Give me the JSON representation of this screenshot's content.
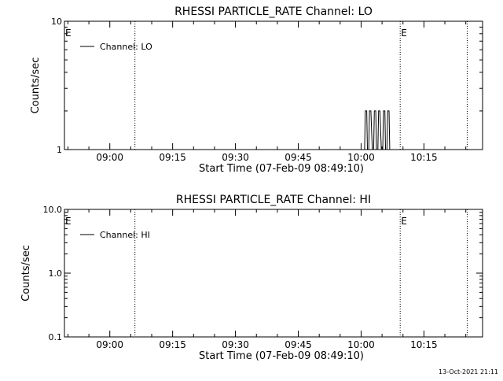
{
  "footer": {
    "timestamp": "13-Oct-2021 21:11"
  },
  "chart_data": [
    {
      "type": "line",
      "title": "RHESSI PARTICLE_RATE Channel: LO",
      "xlabel": "Start Time (07-Feb-09 08:49:10)",
      "ylabel": "Counts/sec",
      "y_scale": "log",
      "ylim": [
        1,
        10
      ],
      "y_ticks": [
        1,
        10
      ],
      "y_tick_labels": [
        "1",
        "10"
      ],
      "xlim": [
        "08:49:10",
        "10:29:00"
      ],
      "x_ticks": [
        "09:00",
        "09:15",
        "09:30",
        "09:45",
        "10:00",
        "10:15"
      ],
      "legend": {
        "label": "Channel: LO",
        "placement": "top-left"
      },
      "markers": [
        {
          "label": "E",
          "time": "08:49:10"
        },
        {
          "label": "E",
          "time": "10:09:20"
        }
      ],
      "vlines": [
        "09:06:00",
        "10:09:20",
        "10:25:20"
      ],
      "series": [
        {
          "name": "Channel: LO",
          "x": [
            "10:00:30",
            "10:00:50",
            "10:01:00",
            "10:01:20",
            "10:01:30",
            "10:01:50",
            "10:02:00",
            "10:02:20",
            "10:02:40",
            "10:03:00",
            "10:03:10",
            "10:03:30",
            "10:03:40",
            "10:04:00",
            "10:04:10",
            "10:04:30",
            "10:04:50",
            "10:05:10",
            "10:05:20",
            "10:05:40",
            "10:05:50",
            "10:06:10",
            "10:06:20",
            "10:06:40",
            "10:06:50",
            "10:07:10",
            "10:07:20"
          ],
          "y": [
            1,
            1,
            2,
            2,
            1,
            1,
            2,
            2,
            1,
            1,
            2,
            2,
            1,
            1,
            2,
            2,
            1,
            1,
            2,
            2,
            1,
            1,
            2,
            2,
            1,
            1,
            1
          ]
        }
      ]
    },
    {
      "type": "line",
      "title": "RHESSI PARTICLE_RATE Channel: HI",
      "xlabel": "Start Time (07-Feb-09 08:49:10)",
      "ylabel": "Counts/sec",
      "y_scale": "log",
      "ylim": [
        0.1,
        10
      ],
      "y_ticks": [
        0.1,
        1,
        10
      ],
      "y_tick_labels": [
        "0.1",
        "1.0",
        "10.0"
      ],
      "xlim": [
        "08:49:10",
        "10:29:00"
      ],
      "x_ticks": [
        "09:00",
        "09:15",
        "09:30",
        "09:45",
        "10:00",
        "10:15"
      ],
      "legend": {
        "label": "Channel: HI",
        "placement": "top-left"
      },
      "markers": [
        {
          "label": "E",
          "time": "08:49:10"
        },
        {
          "label": "E",
          "time": "10:09:20"
        }
      ],
      "vlines": [
        "09:06:00",
        "10:09:20",
        "10:25:20"
      ],
      "series": [
        {
          "name": "Channel: HI",
          "x": [],
          "y": []
        }
      ]
    }
  ]
}
